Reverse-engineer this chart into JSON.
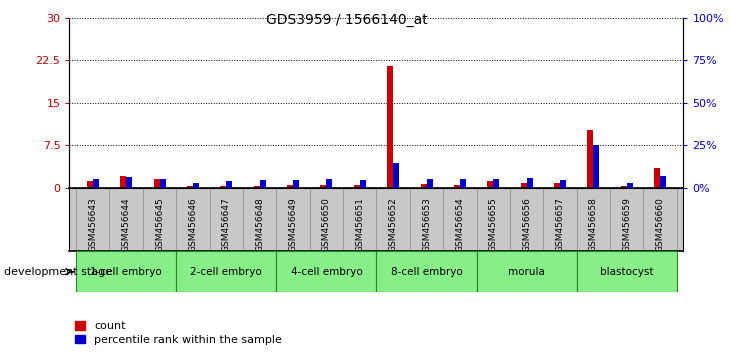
{
  "title": "GDS3959 / 1566140_at",
  "samples": [
    "GSM456643",
    "GSM456644",
    "GSM456645",
    "GSM456646",
    "GSM456647",
    "GSM456648",
    "GSM456649",
    "GSM456650",
    "GSM456651",
    "GSM456652",
    "GSM456653",
    "GSM456654",
    "GSM456655",
    "GSM456656",
    "GSM456657",
    "GSM456658",
    "GSM456659",
    "GSM456660"
  ],
  "counts": [
    1.2,
    2.1,
    1.5,
    0.25,
    0.35,
    0.35,
    0.4,
    0.45,
    0.45,
    21.5,
    0.7,
    0.45,
    1.1,
    0.9,
    0.8,
    10.2,
    0.25,
    3.4
  ],
  "percentiles": [
    5.0,
    6.5,
    5.0,
    3.0,
    4.0,
    4.5,
    4.5,
    5.0,
    4.5,
    14.5,
    5.0,
    5.0,
    5.0,
    5.5,
    4.5,
    25.0,
    3.0,
    7.0
  ],
  "ylim_left": [
    0,
    30
  ],
  "ylim_right": [
    0,
    100
  ],
  "yticks_left": [
    0,
    7.5,
    15,
    22.5,
    30
  ],
  "yticks_right": [
    0,
    25,
    50,
    75,
    100
  ],
  "ytick_labels_left": [
    "0",
    "7.5",
    "15",
    "22.5",
    "30"
  ],
  "ytick_labels_right": [
    "0%",
    "25%",
    "50%",
    "75%",
    "100%"
  ],
  "stages": [
    {
      "label": "1-cell embryo",
      "start": 0,
      "end": 3
    },
    {
      "label": "2-cell embryo",
      "start": 3,
      "end": 6
    },
    {
      "label": "4-cell embryo",
      "start": 6,
      "end": 9
    },
    {
      "label": "8-cell embryo",
      "start": 9,
      "end": 12
    },
    {
      "label": "morula",
      "start": 12,
      "end": 15
    },
    {
      "label": "blastocyst",
      "start": 15,
      "end": 18
    }
  ],
  "bar_width": 0.18,
  "count_color": "#cc0000",
  "percentile_color": "#0000cc",
  "stage_bg_color": "#88ee88",
  "sample_bg_color": "#c8c8c8",
  "stage_border_color": "#228822",
  "legend_count": "count",
  "legend_percentile": "percentile rank within the sample",
  "dev_stage_label": "development stage"
}
